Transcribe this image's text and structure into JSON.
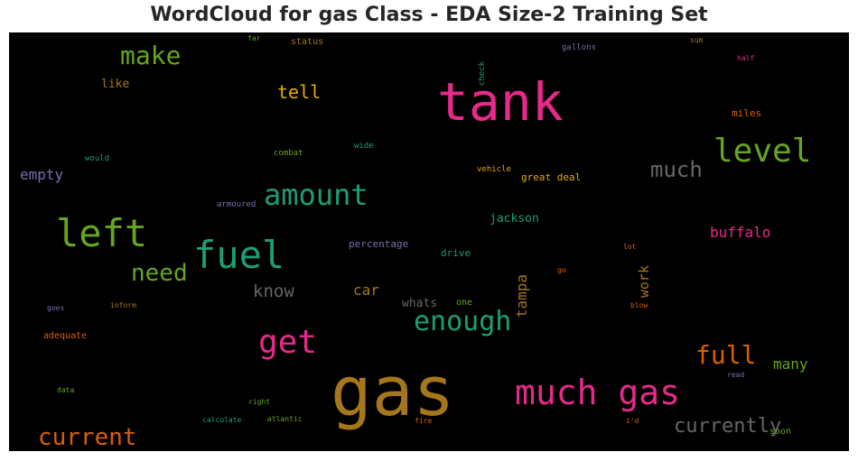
{
  "chart_data": {
    "type": "wordcloud",
    "title": "WordCloud for gas Class - EDA Size-2 Training Set",
    "background": "#000000",
    "words": [
      {
        "text": "gas",
        "color": "#a6761d"
      },
      {
        "text": "tank",
        "color": "#e7298a"
      },
      {
        "text": "fuel",
        "color": "#1b9e77"
      },
      {
        "text": "left",
        "color": "#66a61e"
      },
      {
        "text": "much gas",
        "color": "#e7298a"
      },
      {
        "text": "level",
        "color": "#66a61e"
      },
      {
        "text": "amount",
        "color": "#1b9e77"
      },
      {
        "text": "get",
        "color": "#e7298a"
      },
      {
        "text": "enough",
        "color": "#1b9e77"
      },
      {
        "text": "make",
        "color": "#66a61e"
      },
      {
        "text": "need",
        "color": "#66a61e"
      },
      {
        "text": "current",
        "color": "#d95f02"
      },
      {
        "text": "full",
        "color": "#d95f02"
      },
      {
        "text": "much",
        "color": "#666666"
      },
      {
        "text": "currently",
        "color": "#666666"
      },
      {
        "text": "tell",
        "color": "#e6ab02"
      },
      {
        "text": "know",
        "color": "#666666"
      },
      {
        "text": "buffalo",
        "color": "#e7298a"
      },
      {
        "text": "empty",
        "color": "#7570b3"
      },
      {
        "text": "many",
        "color": "#66a61e"
      },
      {
        "text": "car",
        "color": "#a6761d"
      },
      {
        "text": "tampa",
        "color": "#a6761d"
      },
      {
        "text": "work",
        "color": "#a6761d"
      },
      {
        "text": "jackson",
        "color": "#1b9e77"
      },
      {
        "text": "whats",
        "color": "#666666"
      },
      {
        "text": "like",
        "color": "#a6761d"
      },
      {
        "text": "percentage",
        "color": "#7570b3"
      },
      {
        "text": "great deal",
        "color": "#e6ab02"
      },
      {
        "text": "drive",
        "color": "#1b9e77"
      },
      {
        "text": "miles",
        "color": "#d95f02"
      },
      {
        "text": "status",
        "color": "#a6761d"
      },
      {
        "text": "adequate",
        "color": "#d95f02"
      },
      {
        "text": "one",
        "color": "#66a61e"
      },
      {
        "text": "soon",
        "color": "#66a61e"
      },
      {
        "text": "armoured",
        "color": "#7570b3"
      },
      {
        "text": "vehicle",
        "color": "#e6ab02"
      },
      {
        "text": "combat",
        "color": "#66a61e"
      },
      {
        "text": "wide",
        "color": "#1b9e77"
      },
      {
        "text": "would",
        "color": "#1b9e77"
      },
      {
        "text": "gallons",
        "color": "#7570b3"
      },
      {
        "text": "check",
        "color": "#1b9e77"
      },
      {
        "text": "far",
        "color": "#66a61e"
      },
      {
        "text": "sum",
        "color": "#a6761d"
      },
      {
        "text": "half",
        "color": "#e7298a"
      },
      {
        "text": "lot",
        "color": "#d95f02"
      },
      {
        "text": "go",
        "color": "#d95f02"
      },
      {
        "text": "blow",
        "color": "#d95f02"
      },
      {
        "text": "goes",
        "color": "#7570b3"
      },
      {
        "text": "inform",
        "color": "#a6761d"
      },
      {
        "text": "data",
        "color": "#66a61e"
      },
      {
        "text": "right",
        "color": "#66a61e"
      },
      {
        "text": "calculate",
        "color": "#1b9e77"
      },
      {
        "text": "atlantic",
        "color": "#66a61e"
      },
      {
        "text": "fire",
        "color": "#d95f02"
      },
      {
        "text": "i'd",
        "color": "#d95f02"
      },
      {
        "text": "read",
        "color": "#7570b3"
      }
    ]
  }
}
